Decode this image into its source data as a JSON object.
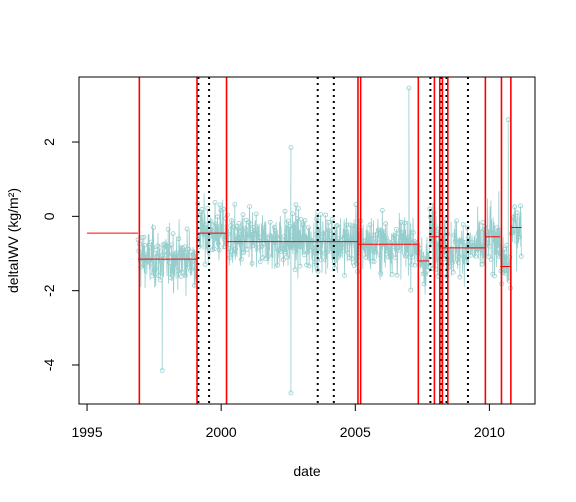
{
  "chart_data": {
    "type": "line",
    "xlabel": "date",
    "ylabel": "deltaIWV (kg/m²)",
    "xlim": [
      1994.7,
      2011.7
    ],
    "ylim": [
      -5.05,
      3.75
    ],
    "x_ticks": [
      1995,
      2000,
      2005,
      2010
    ],
    "x_tick_labels": [
      "1995",
      "2000",
      "2005",
      "2010"
    ],
    "y_ticks": [
      -4,
      -2,
      0,
      2
    ],
    "y_tick_labels": [
      "-4",
      "-2",
      "0",
      "2"
    ],
    "grid": false,
    "colors": {
      "series": "#96cdcd",
      "segment_means": "#ff0000",
      "breakpoints_solid": "#ff0000",
      "breakpoints_dotted": "#000000",
      "axes": "#000000"
    },
    "series": [
      {
        "kind": "points",
        "x_start": 1996.9,
        "x_end": 2011.2,
        "base_mean": -0.75,
        "spread": 0.55,
        "dense_range": [
          -2.8,
          1.2
        ],
        "notable_outliers": [
          {
            "x": 2002.6,
            "y": 1.85
          },
          {
            "x": 2002.6,
            "y": -4.75
          },
          {
            "x": 2007.0,
            "y": 3.45
          },
          {
            "x": 2010.7,
            "y": 2.6
          },
          {
            "x": 1997.8,
            "y": -4.15
          },
          {
            "x": 2008.2,
            "y": -4.3
          }
        ]
      }
    ],
    "segment_means": [
      {
        "x0": 1995.0,
        "x1": 1996.9,
        "y": -0.45
      },
      {
        "x0": 1996.9,
        "x1": 1999.1,
        "y": -1.15
      },
      {
        "x0": 1999.1,
        "x1": 2000.2,
        "y": -0.45
      },
      {
        "x0": 2000.2,
        "x1": 2005.1,
        "y": -0.68
      },
      {
        "x0": 2005.1,
        "x1": 2007.35,
        "y": -0.75
      },
      {
        "x0": 2007.35,
        "x1": 2007.75,
        "y": -1.2
      },
      {
        "x0": 2007.75,
        "x1": 2008.15,
        "y": -0.55
      },
      {
        "x0": 2008.15,
        "x1": 2009.85,
        "y": -0.85
      },
      {
        "x0": 2009.85,
        "x1": 2010.4,
        "y": -0.55
      },
      {
        "x0": 2010.4,
        "x1": 2010.8,
        "y": -1.35
      },
      {
        "x0": 2010.8,
        "x1": 2011.2,
        "y": -0.3
      }
    ],
    "breakpoints_solid": [
      1996.95,
      1999.1,
      2000.2,
      2005.1,
      2005.2,
      2007.35,
      2007.95,
      2008.15,
      2008.25,
      2008.45,
      2009.85,
      2010.45,
      2010.8
    ],
    "breakpoints_dotted": [
      1999.15,
      1999.55,
      2003.6,
      2004.2,
      2007.8,
      2008.2,
      2008.4,
      2009.2
    ]
  }
}
